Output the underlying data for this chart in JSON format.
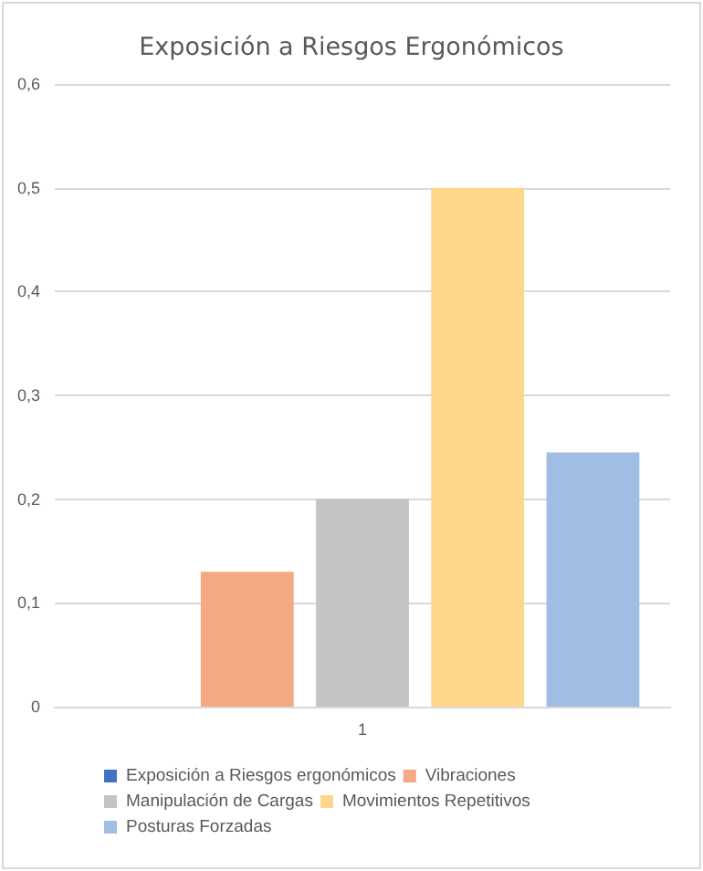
{
  "chart_data": {
    "type": "bar",
    "title": "Exposición a Riesgos Ergonómicos",
    "categories": [
      "1"
    ],
    "series": [
      {
        "name": "Exposición a Riesgos ergonómicos",
        "color": "#4472c4",
        "values": [
          0
        ]
      },
      {
        "name": "Vibraciones",
        "color": "#f5a983",
        "values": [
          0.13
        ]
      },
      {
        "name": "Manipulación de Cargas",
        "color": "#c4c4c4",
        "values": [
          0.2
        ]
      },
      {
        "name": "Movimientos Repetitivos",
        "color": "#fdd68a",
        "values": [
          0.5
        ]
      },
      {
        "name": "Posturas Forzadas",
        "color": "#a0bde3",
        "values": [
          0.245
        ]
      }
    ],
    "ylim": [
      0,
      0.6
    ],
    "yticks": [
      0,
      {
        "value": 0.1,
        "label": "0,1"
      },
      {
        "value": 0.2,
        "label": "0,2"
      },
      {
        "value": 0.3,
        "label": "0,3"
      },
      {
        "value": 0.4,
        "label": "0,4"
      },
      {
        "value": 0.5,
        "label": "0,5"
      },
      {
        "value": 0.6,
        "label": "0,6"
      }
    ],
    "grid": "y",
    "legend": "bottom"
  }
}
